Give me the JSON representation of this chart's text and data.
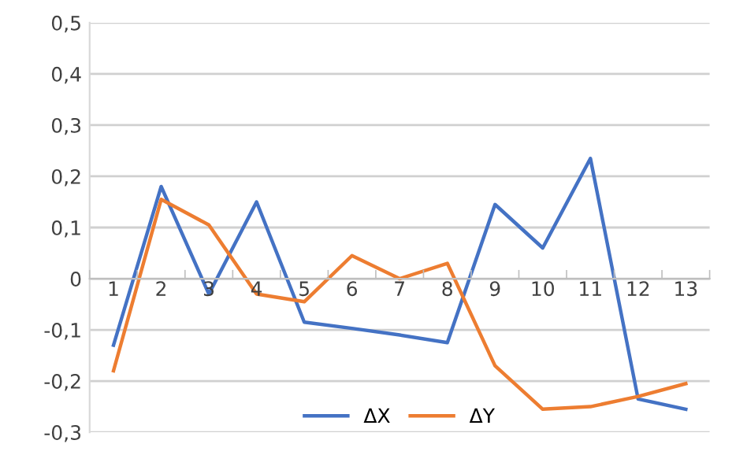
{
  "chart_data": {
    "type": "line",
    "categories": [
      "1",
      "2",
      "3",
      "4",
      "5",
      "6",
      "7",
      "8",
      "9",
      "10",
      "11",
      "12",
      "13"
    ],
    "series": [
      {
        "name": "ΔX",
        "color": "#4472c4",
        "values": [
          -0.13,
          0.18,
          -0.03,
          0.15,
          -0.085,
          -0.097,
          -0.11,
          -0.125,
          0.145,
          0.06,
          0.235,
          -0.235,
          -0.255
        ]
      },
      {
        "name": "ΔY",
        "color": "#ed7d31",
        "values": [
          -0.18,
          0.155,
          0.105,
          -0.03,
          -0.045,
          0.045,
          0,
          0.03,
          -0.17,
          -0.255,
          -0.25,
          -0.23,
          -0.205
        ]
      }
    ],
    "ylim": [
      -0.3,
      0.5
    ],
    "yticks": [
      {
        "value": -0.3,
        "label": "-0,3"
      },
      {
        "value": -0.2,
        "label": "-0,2"
      },
      {
        "value": -0.1,
        "label": "-0,1"
      },
      {
        "value": 0,
        "label": "0"
      },
      {
        "value": 0.1,
        "label": "0,1"
      },
      {
        "value": 0.2,
        "label": "0,2"
      },
      {
        "value": 0.3,
        "label": "0,3"
      },
      {
        "value": 0.4,
        "label": "0,4"
      },
      {
        "value": 0.5,
        "label": "0,5"
      }
    ],
    "grid": "y",
    "legend": "bottom",
    "marker": "none",
    "line_style": "solid"
  }
}
